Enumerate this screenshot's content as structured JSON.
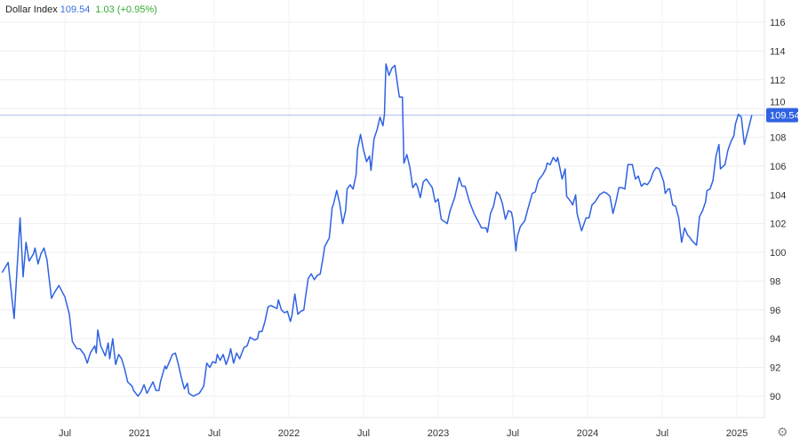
{
  "header": {
    "title": "Dollar Index",
    "last": "109.54",
    "change": "1.03 (+0.95%)"
  },
  "colors": {
    "line": "#2f62e3",
    "price_tag": "#2f62e3",
    "reference_line": "#aabbee",
    "grid": "#eeeeee",
    "change_positive": "#33aa33"
  },
  "icons": {
    "settings": "gear-icon"
  },
  "chart_data": {
    "type": "line",
    "title": "Dollar Index",
    "xlabel": "",
    "ylabel": "",
    "ylim": [
      90,
      116
    ],
    "y_ticks": [
      "90",
      "92",
      "94",
      "96",
      "98",
      "100",
      "102",
      "104",
      "106",
      "108",
      "110",
      "112",
      "114",
      "116"
    ],
    "x_ticks": [
      {
        "label": "Jul",
        "at": 2020.5
      },
      {
        "label": "2021",
        "at": 2021.0
      },
      {
        "label": "Jul",
        "at": 2021.5
      },
      {
        "label": "2022",
        "at": 2022.0
      },
      {
        "label": "Jul",
        "at": 2022.5
      },
      {
        "label": "2023",
        "at": 2023.0
      },
      {
        "label": "Jul",
        "at": 2023.5
      },
      {
        "label": "2024",
        "at": 2024.0
      },
      {
        "label": "Jul",
        "at": 2024.5
      },
      {
        "label": "2025",
        "at": 2025.0
      }
    ],
    "grid": true,
    "last_value_label": "109.54",
    "last_value": 109.54,
    "x": [
      2020.08,
      2020.12,
      2020.16,
      2020.2,
      2020.22,
      2020.24,
      2020.26,
      2020.29,
      2020.3,
      2020.32,
      2020.34,
      2020.36,
      2020.38,
      2020.41,
      2020.43,
      2020.46,
      2020.48,
      2020.5,
      2020.53,
      2020.55,
      2020.58,
      2020.6,
      2020.63,
      2020.65,
      2020.67,
      2020.7,
      2020.71,
      2020.72,
      2020.74,
      2020.77,
      2020.79,
      2020.8,
      2020.82,
      2020.84,
      2020.86,
      2020.88,
      2020.9,
      2020.92,
      2020.93,
      2020.95,
      2020.96,
      2020.99,
      2021.01,
      2021.03,
      2021.05,
      2021.07,
      2021.09,
      2021.11,
      2021.13,
      2021.14,
      2021.17,
      2021.18,
      2021.2,
      2021.22,
      2021.24,
      2021.26,
      2021.28,
      2021.3,
      2021.32,
      2021.33,
      2021.36,
      2021.38,
      2021.4,
      2021.43,
      2021.45,
      2021.47,
      2021.49,
      2021.51,
      2021.52,
      2021.54,
      2021.56,
      2021.58,
      2021.6,
      2021.61,
      2021.63,
      2021.65,
      2021.67,
      2021.7,
      2021.72,
      2021.74,
      2021.77,
      2021.79,
      2021.8,
      2021.82,
      2021.84,
      2021.86,
      2021.88,
      2021.9,
      2021.92,
      2021.93,
      2021.95,
      2021.97,
      2021.99,
      2022.01,
      2022.02,
      2022.04,
      2022.06,
      2022.08,
      2022.1,
      2022.11,
      2022.13,
      2022.15,
      2022.17,
      2022.19,
      2022.21,
      2022.23,
      2022.24,
      2022.27,
      2022.29,
      2022.3,
      2022.32,
      2022.34,
      2022.36,
      2022.38,
      2022.39,
      2022.41,
      2022.43,
      2022.45,
      2022.46,
      2022.48,
      2022.5,
      2022.52,
      2022.54,
      2022.55,
      2022.57,
      2022.59,
      2022.61,
      2022.63,
      2022.64,
      2022.65,
      2022.67,
      2022.69,
      2022.71,
      2022.73,
      2022.74,
      2022.76,
      2022.77,
      2022.79,
      2022.81,
      2022.83,
      2022.85,
      2022.86,
      2022.88,
      2022.9,
      2022.92,
      2022.96,
      2022.98,
      2023.0,
      2023.02,
      2023.06,
      2023.08,
      2023.11,
      2023.14,
      2023.16,
      2023.18,
      2023.21,
      2023.24,
      2023.27,
      2023.29,
      2023.32,
      2023.33,
      2023.35,
      2023.37,
      2023.39,
      2023.41,
      2023.43,
      2023.45,
      2023.47,
      2023.49,
      2023.5,
      2023.52,
      2023.53,
      2023.55,
      2023.58,
      2023.6,
      2023.63,
      2023.65,
      2023.67,
      2023.7,
      2023.72,
      2023.73,
      2023.75,
      2023.77,
      2023.79,
      2023.8,
      2023.83,
      2023.85,
      2023.86,
      2023.89,
      2023.9,
      2023.92,
      2023.93,
      2023.95,
      2023.96,
      2023.99,
      2024.01,
      2024.03,
      2024.05,
      2024.08,
      2024.11,
      2024.13,
      2024.15,
      2024.17,
      2024.19,
      2024.21,
      2024.23,
      2024.25,
      2024.27,
      2024.3,
      2024.32,
      2024.34,
      2024.36,
      2024.38,
      2024.4,
      2024.42,
      2024.44,
      2024.46,
      2024.48,
      2024.51,
      2024.52,
      2024.54,
      2024.55,
      2024.57,
      2024.59,
      2024.61,
      2024.63,
      2024.65,
      2024.67,
      2024.68,
      2024.7,
      2024.73,
      2024.75,
      2024.77,
      2024.79,
      2024.8,
      2024.82,
      2024.84,
      2024.86,
      2024.88,
      2024.89,
      2024.92,
      2024.94,
      2024.96,
      2024.98,
      2024.99,
      2025.01,
      2025.03,
      2025.05,
      2025.08,
      2025.1
    ],
    "y": [
      98.6,
      99.3,
      95.4,
      102.4,
      98.3,
      100.7,
      99.4,
      99.9,
      100.3,
      99.2,
      99.9,
      100.3,
      99.5,
      96.8,
      97.2,
      97.7,
      97.3,
      96.9,
      95.7,
      93.8,
      93.3,
      93.3,
      92.9,
      92.3,
      93.0,
      93.5,
      93.0,
      94.6,
      93.5,
      92.8,
      93.7,
      92.6,
      94.0,
      92.2,
      92.9,
      92.6,
      91.9,
      91.0,
      90.9,
      90.7,
      90.4,
      90.0,
      90.3,
      90.8,
      90.2,
      90.6,
      91.0,
      90.4,
      90.4,
      91.0,
      92.1,
      91.9,
      92.4,
      92.9,
      93.0,
      92.2,
      91.3,
      90.5,
      90.9,
      90.2,
      90.0,
      90.1,
      90.2,
      90.7,
      92.3,
      92.0,
      92.4,
      92.3,
      92.9,
      92.5,
      92.9,
      92.2,
      92.8,
      93.3,
      92.3,
      93.0,
      92.6,
      93.4,
      93.5,
      94.1,
      93.9,
      94.0,
      94.5,
      94.5,
      95.2,
      96.2,
      96.3,
      96.2,
      96.1,
      96.7,
      96.0,
      95.8,
      95.9,
      95.2,
      95.6,
      97.1,
      95.7,
      95.9,
      96.0,
      96.8,
      98.2,
      98.5,
      98.1,
      98.4,
      98.5,
      99.7,
      100.4,
      101.0,
      103.1,
      103.4,
      104.3,
      103.4,
      102.0,
      102.9,
      104.4,
      104.7,
      104.4,
      105.4,
      107.2,
      108.2,
      107.1,
      106.3,
      106.7,
      105.7,
      107.9,
      108.5,
      109.4,
      108.8,
      109.6,
      113.1,
      112.3,
      112.8,
      113.0,
      111.5,
      110.8,
      110.8,
      106.2,
      106.8,
      105.9,
      104.5,
      104.8,
      104.6,
      103.8,
      104.9,
      105.1,
      104.5,
      103.5,
      103.7,
      102.3,
      102.0,
      102.9,
      103.8,
      105.2,
      104.6,
      104.6,
      103.5,
      102.7,
      102.1,
      101.7,
      101.7,
      101.4,
      102.7,
      103.2,
      104.2,
      104.0,
      103.4,
      102.3,
      102.9,
      102.8,
      102.3,
      100.1,
      101.1,
      101.8,
      102.2,
      103.0,
      104.1,
      104.2,
      105.0,
      105.4,
      105.8,
      106.2,
      106.1,
      106.6,
      106.3,
      106.6,
      105.1,
      105.8,
      103.9,
      103.5,
      103.3,
      104.0,
      102.7,
      101.9,
      101.5,
      102.4,
      102.4,
      103.3,
      103.5,
      104.0,
      104.2,
      104.1,
      103.9,
      102.7,
      103.5,
      104.5,
      104.5,
      104.4,
      106.1,
      106.1,
      105.1,
      105.3,
      104.6,
      104.8,
      104.7,
      105.0,
      105.6,
      105.9,
      105.8,
      104.9,
      104.1,
      104.4,
      104.4,
      103.3,
      103.2,
      102.4,
      100.7,
      101.7,
      101.2,
      101.1,
      100.8,
      100.5,
      102.5,
      102.9,
      103.5,
      104.3,
      104.4,
      105.0,
      106.7,
      107.5,
      105.8,
      106.1,
      107.1,
      107.7,
      108.1,
      108.9,
      109.6,
      109.4,
      107.5,
      108.7,
      109.54
    ]
  }
}
